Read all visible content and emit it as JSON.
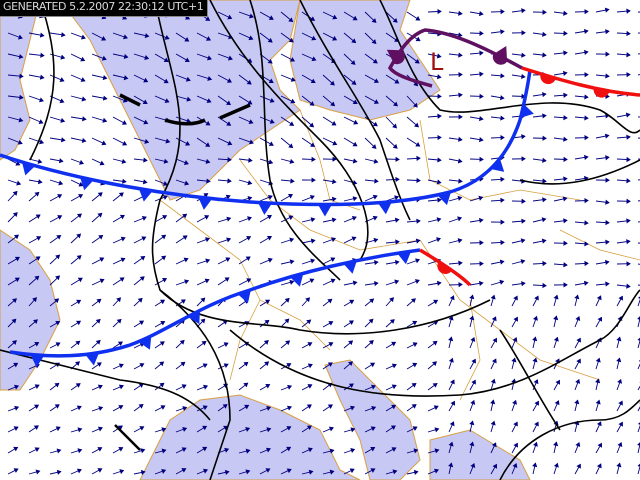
{
  "map": {
    "generated_label": "GENERATED 5.2.2007 22:30:12 UTC+1",
    "low_pressure_label": "L",
    "colors": {
      "sea": "#c8c8f4",
      "land": "#ffffff",
      "coastline": "#d8a040",
      "isobar": "#000000",
      "cold_front": "#1030f0",
      "warm_front": "#f01010",
      "occluded_front": "#601060",
      "wind_arrow": "#000080",
      "low_label": "#a01010"
    },
    "layers": [
      "sea",
      "coastlines",
      "wind-arrows",
      "isobars",
      "cold-fronts",
      "warm-fronts",
      "occluded-front",
      "pressure-center"
    ]
  }
}
